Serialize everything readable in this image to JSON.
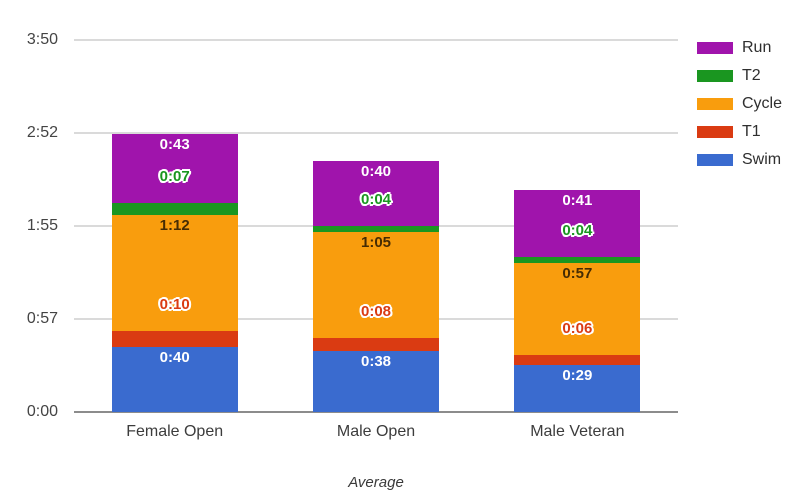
{
  "chart_data": {
    "type": "bar",
    "stacked": true,
    "title": "",
    "xlabel": "Average",
    "categories": [
      "Female Open",
      "Male Open",
      "Male Veteran"
    ],
    "series": [
      {
        "name": "Swim",
        "color": "#3A6BCF",
        "values": [
          "0:40",
          "0:38",
          "0:29"
        ],
        "minutes": [
          40,
          38,
          29
        ],
        "label_style": "white",
        "label_placement": "inside"
      },
      {
        "name": "T1",
        "color": "#DA3B12",
        "values": [
          "0:10",
          "0:08",
          "0:06"
        ],
        "minutes": [
          10,
          8,
          6
        ],
        "label_style": "outline",
        "label_placement": "above"
      },
      {
        "name": "Cycle",
        "color": "#F99D0D",
        "values": [
          "1:12",
          "1:05",
          "0:57"
        ],
        "minutes": [
          72,
          65,
          57
        ],
        "label_style": "dark",
        "label_placement": "inside"
      },
      {
        "name": "T2",
        "color": "#1A9620",
        "values": [
          "0:07",
          "0:04",
          "0:04"
        ],
        "minutes": [
          7,
          4,
          4
        ],
        "label_style": "outline",
        "label_placement": "above"
      },
      {
        "name": "Run",
        "color": "#A014AC",
        "values": [
          "0:43",
          "0:40",
          "0:41"
        ],
        "minutes": [
          43,
          40,
          41
        ],
        "label_style": "white",
        "label_placement": "inside"
      }
    ],
    "y_axis": {
      "ticks": [
        {
          "label": "0:00",
          "minutes": 0
        },
        {
          "label": "0:57",
          "minutes": 57.5
        },
        {
          "label": "1:55",
          "minutes": 115
        },
        {
          "label": "2:52",
          "minutes": 172.5
        },
        {
          "label": "3:50",
          "minutes": 230
        }
      ],
      "max_minutes": 230,
      "grid": true
    },
    "legend": {
      "position": "right",
      "entries": [
        "Run",
        "T2",
        "Cycle",
        "T1",
        "Swim"
      ]
    }
  },
  "colors": {
    "background": "#ffffff",
    "grid_line": "#dadada",
    "axis_line": "#8c8c8c",
    "tick_text": "#444444",
    "category_text": "#3c3c3c",
    "legend_text": "#2f2f2f",
    "axis_title_text": "#3a3a3a"
  }
}
